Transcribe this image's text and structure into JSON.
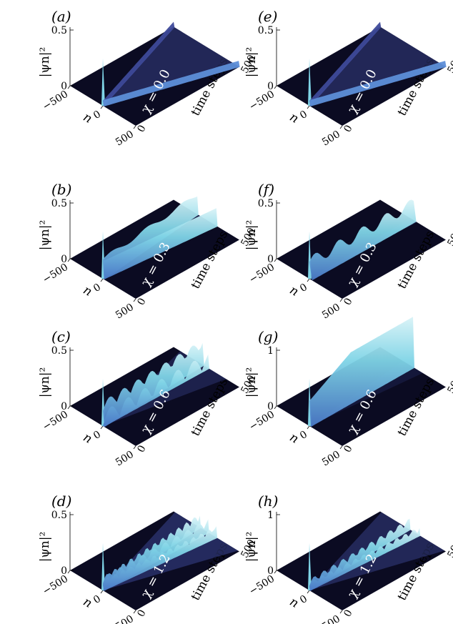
{
  "figure": {
    "zlabel": "|ψn|²",
    "xlabel": "n",
    "ylabel": "time steps",
    "x_ticks": [
      "−500",
      "0",
      "500"
    ],
    "y_ticks": [
      "0",
      "500"
    ],
    "colors": {
      "bg": "#0b0b22",
      "dark": "#15163a",
      "mid": "#3e4a9a",
      "light": "#7fd4e6",
      "pale": "#d9f3f7"
    },
    "panels": [
      {
        "label": "(a)",
        "chi": "χ = 0.0",
        "z_ticks": [
          "0",
          "0.5"
        ],
        "pattern": "cone",
        "zmax": 0.5,
        "amp": 0.1
      },
      {
        "label": "(e)",
        "chi": "χ = 0.0",
        "z_ticks": [
          "0",
          "0.5"
        ],
        "pattern": "cone",
        "zmax": 0.5,
        "amp": 0.1
      },
      {
        "label": "(b)",
        "chi": "χ = 0.3",
        "z_ticks": [
          "0",
          "0.5"
        ],
        "pattern": "twojets",
        "zmax": 0.5,
        "amp": 0.35
      },
      {
        "label": "(f)",
        "chi": "χ = 0.3",
        "z_ticks": [
          "0",
          "0.5"
        ],
        "pattern": "wavy",
        "zmax": 0.5,
        "amp": 0.4
      },
      {
        "label": "(c)",
        "chi": "χ = 0.6",
        "z_ticks": [
          "0",
          "0.5"
        ],
        "pattern": "breathing",
        "zmax": 0.5,
        "amp": 0.45
      },
      {
        "label": "(g)",
        "chi": "χ = 0.6",
        "z_ticks": [
          "0",
          "1"
        ],
        "pattern": "localized",
        "zmax": 1,
        "amp": 0.9
      },
      {
        "label": "(d)",
        "chi": "χ = 1.2",
        "z_ticks": [
          "0",
          "0.5"
        ],
        "pattern": "chaotic",
        "zmax": 0.5,
        "amp": 0.25
      },
      {
        "label": "(h)",
        "chi": "χ = 1.2",
        "z_ticks": [
          "0",
          "1"
        ],
        "pattern": "chaotic2",
        "zmax": 1,
        "amp": 0.2
      }
    ]
  }
}
